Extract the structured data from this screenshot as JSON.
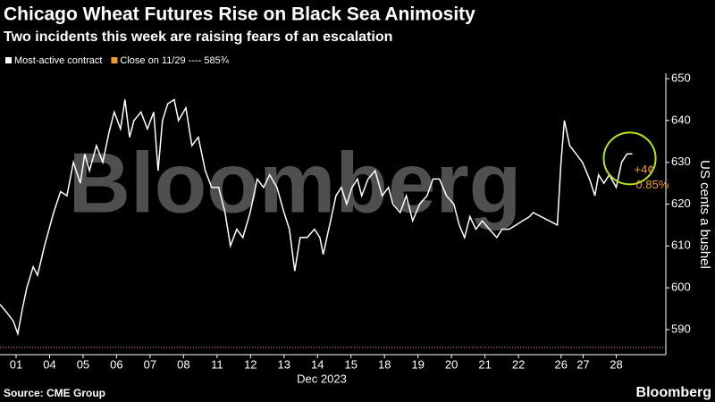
{
  "chart_data": {
    "type": "line",
    "title": "Chicago Wheat Futures Rise on Black Sea Animosity",
    "subtitle": "Two incidents this week are raising fears of an escalation",
    "watermark": "Bloomberg",
    "ylabel": "US cents a bushel",
    "xlabel": "Dec 2023",
    "source": "Source: CME Group",
    "logo": "Bloomberg",
    "xlim": [
      -0.48,
      19.4
    ],
    "ylim": [
      584,
      651.3
    ],
    "yticks": [
      590,
      600,
      610,
      620,
      630,
      640,
      650
    ],
    "xticks": [
      {
        "value": 0,
        "label": "01"
      },
      {
        "value": 1,
        "label": "04"
      },
      {
        "value": 2,
        "label": "05"
      },
      {
        "value": 3,
        "label": "06"
      },
      {
        "value": 4,
        "label": "07"
      },
      {
        "value": 5,
        "label": "08"
      },
      {
        "value": 6,
        "label": "11"
      },
      {
        "value": 7,
        "label": "12"
      },
      {
        "value": 8,
        "label": "13"
      },
      {
        "value": 9,
        "label": "14"
      },
      {
        "value": 10,
        "label": "15"
      },
      {
        "value": 11,
        "label": "18"
      },
      {
        "value": 12,
        "label": "19"
      },
      {
        "value": 13,
        "label": "20"
      },
      {
        "value": 14,
        "label": "21"
      },
      {
        "value": 15,
        "label": "22"
      },
      {
        "value": 16.27,
        "label": "26"
      },
      {
        "value": 16.93,
        "label": "27"
      },
      {
        "value": 17.92,
        "label": "28"
      }
    ],
    "x": [
      -0.48,
      -0.27,
      -0.08,
      0.05,
      0.19,
      0.32,
      0.51,
      0.64,
      0.85,
      1.12,
      1.33,
      1.52,
      1.71,
      1.92,
      2.05,
      2.19,
      2.4,
      2.59,
      2.77,
      2.93,
      3.12,
      3.25,
      3.39,
      3.52,
      3.73,
      3.92,
      4.11,
      4.24,
      4.37,
      4.53,
      4.72,
      4.85,
      5.07,
      5.25,
      5.44,
      5.65,
      5.84,
      6.05,
      6.24,
      6.4,
      6.59,
      6.77,
      6.99,
      7.2,
      7.39,
      7.57,
      7.79,
      8,
      8.16,
      8.32,
      8.48,
      8.69,
      8.91,
      9.07,
      9.17,
      9.39,
      9.55,
      9.71,
      9.87,
      10.03,
      10.19,
      10.32,
      10.51,
      10.72,
      10.93,
      11.12,
      11.25,
      11.47,
      11.65,
      11.84,
      12.05,
      12.27,
      12.45,
      12.64,
      12.85,
      13.07,
      13.23,
      13.39,
      13.55,
      13.73,
      13.92,
      14.13,
      14.35,
      14.51,
      14.72,
      14.93,
      15.12,
      15.33,
      15.44,
      16.16,
      16.27,
      16.37,
      16.53,
      16.72,
      16.91,
      17.12,
      17.28,
      17.39,
      17.55,
      17.71,
      17.92,
      18.08,
      18.24,
      18.4
    ],
    "series": [
      {
        "name": "Most-active contract",
        "color": "#ffffff",
        "values": [
          596,
          594,
          592,
          589,
          595,
          600,
          605,
          603,
          610,
          618,
          623,
          622,
          630,
          625,
          632,
          628,
          634,
          630,
          637,
          642,
          638,
          645,
          636,
          640,
          642,
          638,
          642,
          628,
          640,
          644,
          645,
          640,
          643,
          634,
          636,
          628,
          624,
          624,
          618,
          610,
          614,
          612,
          618,
          626,
          624,
          627,
          624,
          618,
          614,
          604,
          612,
          612,
          614,
          612,
          608,
          616,
          622,
          624,
          620,
          624,
          626,
          622,
          626,
          628,
          622,
          624,
          620,
          618,
          622,
          616,
          620,
          622,
          626,
          626,
          622,
          620,
          615,
          612,
          617,
          614,
          616,
          614,
          612,
          614,
          614,
          615,
          616,
          617,
          618,
          615,
          630,
          640,
          634,
          632,
          630,
          626,
          622,
          627,
          625,
          627,
          624,
          630,
          632,
          632
        ]
      }
    ],
    "reference_line": {
      "name": "Close on 11/29 ---- 585¾",
      "value": 585.75,
      "color": "#f39c2b"
    },
    "annotations": [
      "+4¢",
      "0.85%"
    ]
  }
}
